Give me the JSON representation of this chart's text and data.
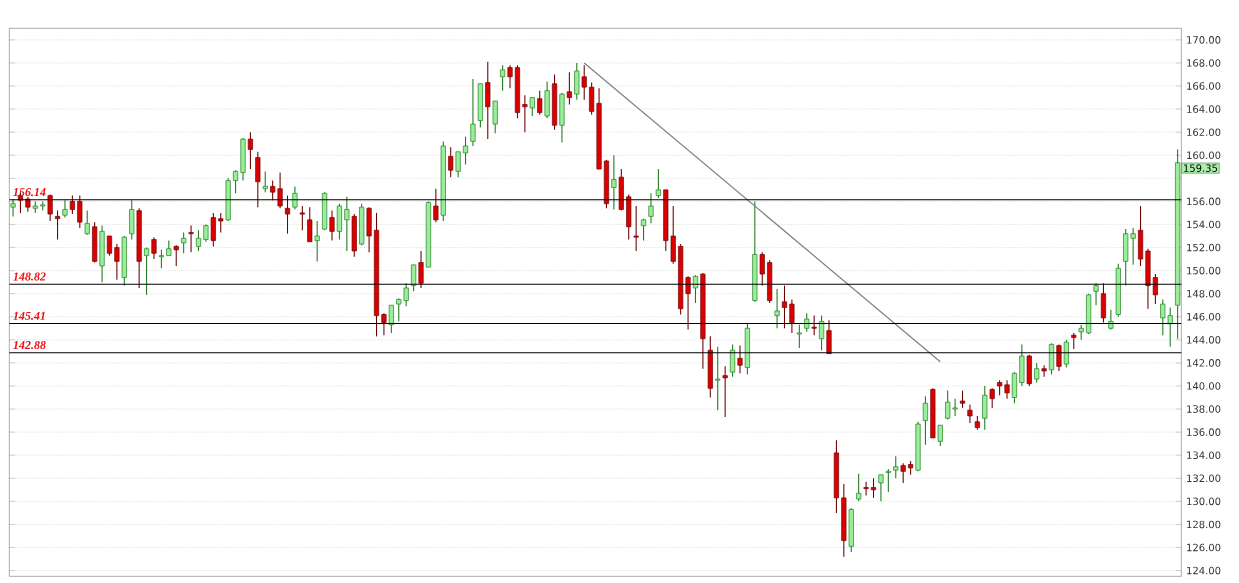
{
  "chart_data": {
    "type": "candlestick",
    "categories": [
      null,
      null,
      null,
      null,
      null,
      null,
      null,
      null,
      null,
      null,
      null,
      null,
      null,
      null,
      null,
      null,
      null,
      null,
      null,
      null,
      null,
      null,
      null,
      null,
      null,
      null,
      null,
      null,
      null,
      null,
      null,
      null,
      null,
      null,
      null,
      null,
      null,
      null,
      null,
      null,
      null,
      null,
      null,
      null,
      null,
      null,
      null,
      null,
      null,
      null,
      null,
      null,
      null,
      null,
      null,
      null,
      null,
      null,
      null,
      null,
      null,
      null,
      null,
      null,
      null,
      null,
      null,
      null,
      null,
      null,
      null,
      null,
      null,
      null,
      null,
      null,
      null,
      null,
      null,
      null,
      null,
      null,
      null,
      null,
      null,
      null,
      null,
      null,
      null,
      null,
      null,
      null,
      null,
      null,
      null,
      null,
      null,
      null,
      null,
      null,
      null,
      null,
      null,
      null,
      null,
      null,
      null,
      null,
      null,
      null,
      null,
      null,
      null,
      null,
      null,
      null,
      null,
      null,
      null,
      null,
      null,
      null,
      null,
      null,
      null,
      null,
      null,
      null,
      null,
      null,
      null,
      null,
      null,
      null,
      null,
      null,
      null,
      null,
      null,
      null,
      null,
      null,
      null,
      null,
      null,
      null,
      null,
      null,
      null,
      null,
      null,
      null,
      null,
      null,
      null,
      null,
      null,
      null
    ],
    "ohlc": [
      [
        155.5,
        156.2,
        154.7,
        155.8
      ],
      [
        156.5,
        156.8,
        155.0,
        156.1
      ],
      [
        156.2,
        156.4,
        155.1,
        155.5
      ],
      [
        155.4,
        156.0,
        155.0,
        155.6
      ],
      [
        155.6,
        156.0,
        155.2,
        155.7
      ],
      [
        156.5,
        156.6,
        154.3,
        154.9
      ],
      [
        154.7,
        155.2,
        152.7,
        154.5
      ],
      [
        154.8,
        156.1,
        154.6,
        155.3
      ],
      [
        156.0,
        156.5,
        154.9,
        155.3
      ],
      [
        156.0,
        156.5,
        153.7,
        154.2
      ],
      [
        153.2,
        155.2,
        153.1,
        154.1
      ],
      [
        153.8,
        154.2,
        150.7,
        150.8
      ],
      [
        150.4,
        153.9,
        149.0,
        153.4
      ],
      [
        153.0,
        153.0,
        151.3,
        151.5
      ],
      [
        152.0,
        152.3,
        149.2,
        150.8
      ],
      [
        149.4,
        153.0,
        148.7,
        152.9
      ],
      [
        153.2,
        156.1,
        152.7,
        155.3
      ],
      [
        155.2,
        155.4,
        148.5,
        150.8
      ],
      [
        151.3,
        152.0,
        147.9,
        151.9
      ],
      [
        152.7,
        152.9,
        151.0,
        151.5
      ],
      [
        151.2,
        151.8,
        150.2,
        151.3
      ],
      [
        151.3,
        152.6,
        151.3,
        151.9
      ],
      [
        152.1,
        152.2,
        150.4,
        151.8
      ],
      [
        152.4,
        153.3,
        151.5,
        152.8
      ],
      [
        153.3,
        153.9,
        151.6,
        153.2
      ],
      [
        152.1,
        153.5,
        151.7,
        152.8
      ],
      [
        152.7,
        154.0,
        152.5,
        153.9
      ],
      [
        154.6,
        155.0,
        152.1,
        152.6
      ],
      [
        154.5,
        155.0,
        153.3,
        154.3
      ],
      [
        154.4,
        158.0,
        154.3,
        157.8
      ],
      [
        157.8,
        158.7,
        156.7,
        158.6
      ],
      [
        158.5,
        161.5,
        157.8,
        161.4
      ],
      [
        161.4,
        162.0,
        158.8,
        160.5
      ],
      [
        159.8,
        160.3,
        155.5,
        157.7
      ],
      [
        157.1,
        158.6,
        156.8,
        157.3
      ],
      [
        157.3,
        157.8,
        156.1,
        156.8
      ],
      [
        157.1,
        158.5,
        155.4,
        155.6
      ],
      [
        155.4,
        156.5,
        153.2,
        154.9
      ],
      [
        155.5,
        157.3,
        155.3,
        156.7
      ],
      [
        155.0,
        155.6,
        153.5,
        154.9
      ],
      [
        154.4,
        155.5,
        152.5,
        152.5
      ],
      [
        152.6,
        154.3,
        150.8,
        153.0
      ],
      [
        153.6,
        156.8,
        153.5,
        156.7
      ],
      [
        154.6,
        155.2,
        152.6,
        153.4
      ],
      [
        153.4,
        155.8,
        152.7,
        155.6
      ],
      [
        154.4,
        156.4,
        151.7,
        155.3
      ],
      [
        154.7,
        154.9,
        151.2,
        151.7
      ],
      [
        152.3,
        155.8,
        152.2,
        155.5
      ],
      [
        155.4,
        155.5,
        151.6,
        153.0
      ],
      [
        153.5,
        155.0,
        144.3,
        146.1
      ],
      [
        146.2,
        146.3,
        144.4,
        145.5
      ],
      [
        145.3,
        147.0,
        144.6,
        147.0
      ],
      [
        147.1,
        147.6,
        145.6,
        147.5
      ],
      [
        147.4,
        148.9,
        146.9,
        148.5
      ],
      [
        148.7,
        150.5,
        148.2,
        150.5
      ],
      [
        150.7,
        151.7,
        148.5,
        148.9
      ],
      [
        150.3,
        156.0,
        150.3,
        155.9
      ],
      [
        155.6,
        157.1,
        154.2,
        154.4
      ],
      [
        154.8,
        161.2,
        154.3,
        160.8
      ],
      [
        159.9,
        160.7,
        158.1,
        158.7
      ],
      [
        158.6,
        160.3,
        158.1,
        160.3
      ],
      [
        160.2,
        161.6,
        159.2,
        160.8
      ],
      [
        161.2,
        166.6,
        160.8,
        162.7
      ],
      [
        163.0,
        166.2,
        162.4,
        166.2
      ],
      [
        166.3,
        168.1,
        161.4,
        164.2
      ],
      [
        162.7,
        164.7,
        161.9,
        164.7
      ],
      [
        166.8,
        167.8,
        165.6,
        167.4
      ],
      [
        167.6,
        167.8,
        165.8,
        166.8
      ],
      [
        167.6,
        167.8,
        163.2,
        163.7
      ],
      [
        164.4,
        165.2,
        162.0,
        164.2
      ],
      [
        164.1,
        165.0,
        163.4,
        165.0
      ],
      [
        164.9,
        165.6,
        163.5,
        163.7
      ],
      [
        163.4,
        166.4,
        163.2,
        165.6
      ],
      [
        166.2,
        167.0,
        162.2,
        162.6
      ],
      [
        162.6,
        165.4,
        161.1,
        165.3
      ],
      [
        165.5,
        167.2,
        164.4,
        165.0
      ],
      [
        165.3,
        168.0,
        164.8,
        167.3
      ],
      [
        166.8,
        167.8,
        164.8,
        165.9
      ],
      [
        165.9,
        166.3,
        163.5,
        163.8
      ],
      [
        164.5,
        165.8,
        158.8,
        158.8
      ],
      [
        159.5,
        159.6,
        155.4,
        155.8
      ],
      [
        157.2,
        160.0,
        155.3,
        157.9
      ],
      [
        158.1,
        158.8,
        155.2,
        155.3
      ],
      [
        156.4,
        156.6,
        152.7,
        153.8
      ],
      [
        153.0,
        155.6,
        151.7,
        152.9
      ],
      [
        153.9,
        154.5,
        152.6,
        154.4
      ],
      [
        154.7,
        156.7,
        154.1,
        155.6
      ],
      [
        156.5,
        158.8,
        156.3,
        157.0
      ],
      [
        157.0,
        157.0,
        151.7,
        152.6
      ],
      [
        153.0,
        155.6,
        150.6,
        150.8
      ],
      [
        152.1,
        152.3,
        146.2,
        146.7
      ],
      [
        149.4,
        149.5,
        144.9,
        148.0
      ],
      [
        148.5,
        149.6,
        147.2,
        149.5
      ],
      [
        149.7,
        149.8,
        141.5,
        144.1
      ],
      [
        143.1,
        144.3,
        139.0,
        139.8
      ],
      [
        140.5,
        143.4,
        137.9,
        140.6
      ],
      [
        140.9,
        141.7,
        137.3,
        140.7
      ],
      [
        141.2,
        143.6,
        140.8,
        143.1
      ],
      [
        142.4,
        143.5,
        141.1,
        141.8
      ],
      [
        141.6,
        145.4,
        141.0,
        145.0
      ],
      [
        147.4,
        156.0,
        147.3,
        151.4
      ],
      [
        151.4,
        151.6,
        148.7,
        149.7
      ],
      [
        150.7,
        150.9,
        147.2,
        147.4
      ],
      [
        146.1,
        148.4,
        145.0,
        146.5
      ],
      [
        147.3,
        148.7,
        145.0,
        146.8
      ],
      [
        147.1,
        147.5,
        144.6,
        145.5
      ],
      [
        144.5,
        145.3,
        143.3,
        144.6
      ],
      [
        145.0,
        146.3,
        144.7,
        145.8
      ],
      [
        145.1,
        146.1,
        144.4,
        145.0
      ],
      [
        144.1,
        146.1,
        143.1,
        145.6
      ],
      [
        144.8,
        145.7,
        142.8,
        142.8
      ],
      [
        134.2,
        135.3,
        129.0,
        130.3
      ],
      [
        130.3,
        131.5,
        125.2,
        126.6
      ],
      [
        126.1,
        129.4,
        125.6,
        129.3
      ],
      [
        130.2,
        132.4,
        130.0,
        130.7
      ],
      [
        131.2,
        131.7,
        130.5,
        131.1
      ],
      [
        131.2,
        132.0,
        130.3,
        131.0
      ],
      [
        131.6,
        132.3,
        130.0,
        132.3
      ],
      [
        132.5,
        132.8,
        130.8,
        132.6
      ],
      [
        132.7,
        133.9,
        132.0,
        133.0
      ],
      [
        133.1,
        133.3,
        131.6,
        132.6
      ],
      [
        133.2,
        133.5,
        132.3,
        132.9
      ],
      [
        132.7,
        136.9,
        132.6,
        136.7
      ],
      [
        137.0,
        139.1,
        134.9,
        138.5
      ],
      [
        139.7,
        139.8,
        135.5,
        135.5
      ],
      [
        135.2,
        136.6,
        134.8,
        136.6
      ],
      [
        137.2,
        139.6,
        137.1,
        138.6
      ],
      [
        138.0,
        138.9,
        137.4,
        138.1
      ],
      [
        138.7,
        139.6,
        138.1,
        138.5
      ],
      [
        137.9,
        138.4,
        136.8,
        137.4
      ],
      [
        136.9,
        137.4,
        136.2,
        136.4
      ],
      [
        137.2,
        140.0,
        136.2,
        139.2
      ],
      [
        139.7,
        139.8,
        138.1,
        138.9
      ],
      [
        140.3,
        140.5,
        139.2,
        140.0
      ],
      [
        140.1,
        140.5,
        138.9,
        139.4
      ],
      [
        139.0,
        141.2,
        138.5,
        141.1
      ],
      [
        140.3,
        143.6,
        140.0,
        142.6
      ],
      [
        142.6,
        142.7,
        140.0,
        140.2
      ],
      [
        140.6,
        142.0,
        140.3,
        141.5
      ],
      [
        141.5,
        141.8,
        140.8,
        141.3
      ],
      [
        141.4,
        143.7,
        141.0,
        143.6
      ],
      [
        143.5,
        143.6,
        141.3,
        141.7
      ],
      [
        141.9,
        144.0,
        141.6,
        143.8
      ],
      [
        144.4,
        144.6,
        143.2,
        144.2
      ],
      [
        144.7,
        145.3,
        144.0,
        145.0
      ],
      [
        144.6,
        148.0,
        144.5,
        147.9
      ],
      [
        148.2,
        148.9,
        147.0,
        148.7
      ],
      [
        148.0,
        148.9,
        145.5,
        145.9
      ],
      [
        145.0,
        146.6,
        144.9,
        145.6
      ],
      [
        146.2,
        150.6,
        146.0,
        150.2
      ],
      [
        150.8,
        153.6,
        148.7,
        153.2
      ],
      [
        152.8,
        153.7,
        150.5,
        153.2
      ],
      [
        153.5,
        155.6,
        150.4,
        151.0
      ],
      [
        151.7,
        151.9,
        146.7,
        148.7
      ],
      [
        149.4,
        149.7,
        147.1,
        147.9
      ],
      [
        145.9,
        147.5,
        144.4,
        147.1
      ],
      [
        145.4,
        146.8,
        143.4,
        146.1
      ],
      [
        147.0,
        160.5,
        144.1,
        159.35
      ]
    ],
    "series": [
      {
        "type": "line",
        "values": [
          null,
          null,
          null,
          null,
          null,
          null,
          null,
          null,
          null,
          null,
          null,
          null,
          null,
          null,
          null,
          null,
          null,
          null,
          null,
          null,
          null,
          null,
          null,
          null,
          null,
          null,
          null,
          null,
          null,
          null,
          null,
          null,
          null,
          null,
          null,
          null,
          null,
          null,
          null,
          null,
          null,
          null,
          null,
          null,
          null,
          null,
          null,
          null,
          null,
          null,
          null,
          null,
          null,
          null,
          null,
          null,
          null,
          null,
          null,
          null,
          null,
          null,
          null,
          null,
          null,
          null,
          null,
          null,
          null,
          null,
          null,
          null,
          null,
          null,
          null,
          null,
          null,
          168.0,
          null,
          null,
          null,
          null,
          null,
          null,
          null,
          null,
          null,
          null,
          null,
          null,
          null,
          null,
          null,
          null,
          null,
          null,
          null,
          null,
          null,
          null,
          null,
          null,
          null,
          null,
          null,
          null,
          null,
          null,
          null,
          null,
          null,
          null,
          null,
          null,
          null,
          null,
          null,
          null,
          null,
          null,
          null,
          null,
          null,
          null,
          null,
          142.1,
          null,
          null,
          null,
          null,
          null,
          null,
          null,
          null,
          null,
          null,
          null,
          null,
          null,
          null,
          null,
          null,
          null,
          null,
          null,
          null,
          null,
          null,
          null,
          null,
          null,
          null,
          null,
          null,
          null,
          null,
          null,
          null
        ],
        "color": "#7f7f7f"
      }
    ],
    "ylim": [
      123.5,
      171
    ],
    "yticks": [
      {
        "value": 124,
        "label": "124.00"
      },
      {
        "value": 126,
        "label": "126.00"
      },
      {
        "value": 128,
        "label": "128.00"
      },
      {
        "value": 130,
        "label": "130.00"
      },
      {
        "value": 132,
        "label": "132.00"
      },
      {
        "value": 134,
        "label": "134.00"
      },
      {
        "value": 136,
        "label": "136.00"
      },
      {
        "value": 138,
        "label": "138.00"
      },
      {
        "value": 140,
        "label": "140.00"
      },
      {
        "value": 142,
        "label": "142.00"
      },
      {
        "value": 144,
        "label": "144.00"
      },
      {
        "value": 146,
        "label": "146.00"
      },
      {
        "value": 148,
        "label": "148.00"
      },
      {
        "value": 150,
        "label": "150.00"
      },
      {
        "value": 152,
        "label": "152.00"
      },
      {
        "value": 154,
        "label": "154.00"
      },
      {
        "value": 156,
        "label": "156.00"
      },
      {
        "value": 158,
        "label": null
      },
      {
        "value": 160,
        "label": "160.00"
      },
      {
        "value": 162,
        "label": "162.00"
      },
      {
        "value": 164,
        "label": "164.00"
      },
      {
        "value": 166,
        "label": "166.00"
      },
      {
        "value": 168,
        "label": "168.00"
      },
      {
        "value": 170,
        "label": "170.00"
      }
    ],
    "ref_lines": [
      {
        "axis": "y",
        "value": 156.14,
        "label": "156.14",
        "color": "#000000"
      },
      {
        "axis": "y",
        "value": 148.82,
        "label": "148.82",
        "color": "#000000"
      },
      {
        "axis": "y",
        "value": 145.41,
        "label": "145.41",
        "color": "#000000"
      },
      {
        "axis": "y",
        "value": 142.88,
        "label": "142.88",
        "color": "#000000"
      }
    ],
    "annotations": [
      "159.35"
    ],
    "grid": "y"
  }
}
